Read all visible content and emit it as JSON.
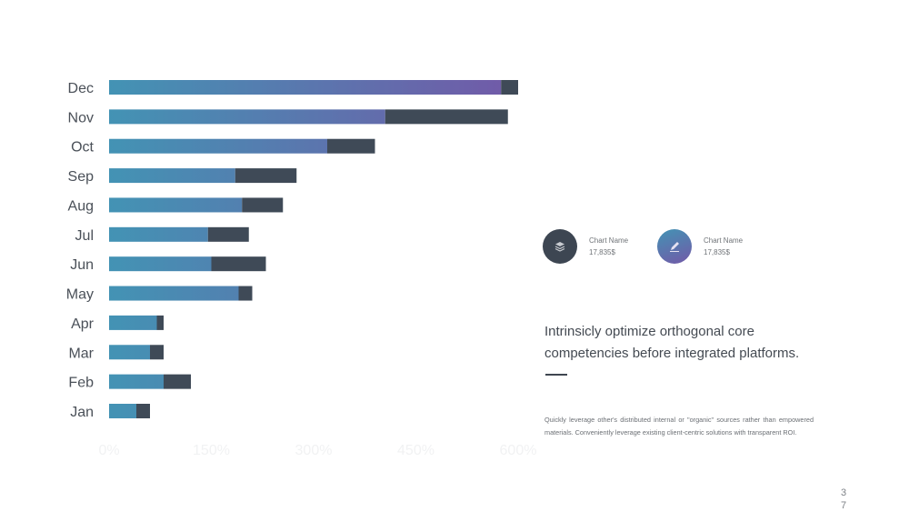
{
  "chart_data": {
    "type": "bar",
    "orientation": "horizontal",
    "stacked": true,
    "categories": [
      "Jan",
      "Feb",
      "Mar",
      "Apr",
      "May",
      "Jun",
      "Jul",
      "Aug",
      "Sep",
      "Oct",
      "Nov",
      "Dec"
    ],
    "series": [
      {
        "values": [
          40,
          80,
          60,
          70,
          190,
          150,
          145,
          195,
          185,
          320,
          405,
          575
        ]
      },
      {
        "values": [
          20,
          40,
          20,
          10,
          20,
          80,
          60,
          60,
          90,
          70,
          180,
          25
        ]
      }
    ],
    "x_ticks": [
      "0%",
      "150%",
      "300%",
      "450%",
      "600%"
    ],
    "xlim": [
      0,
      600
    ],
    "grid": false
  },
  "colors": {
    "gradient_start": "#4393b4",
    "gradient_end": "#7259a8",
    "series_2": "#3f4a57",
    "legend_1": "#3d4652",
    "tick_faint": "#f1f2f3"
  },
  "legend": [
    {
      "icon": "layers-icon",
      "name": "Chart Name",
      "value": "17,835$"
    },
    {
      "icon": "pencil-icon",
      "name": "Chart Name",
      "value": "17,835$"
    }
  ],
  "headline": "Intrinsicly optimize orthogonal core competencies before integrated platforms.",
  "body": "Quickly leverage other's distributed internal or \"organic\" sources rather than empowered materials. Conveniently leverage existing client-centric solutions with transparent ROI.",
  "page_number": "37"
}
